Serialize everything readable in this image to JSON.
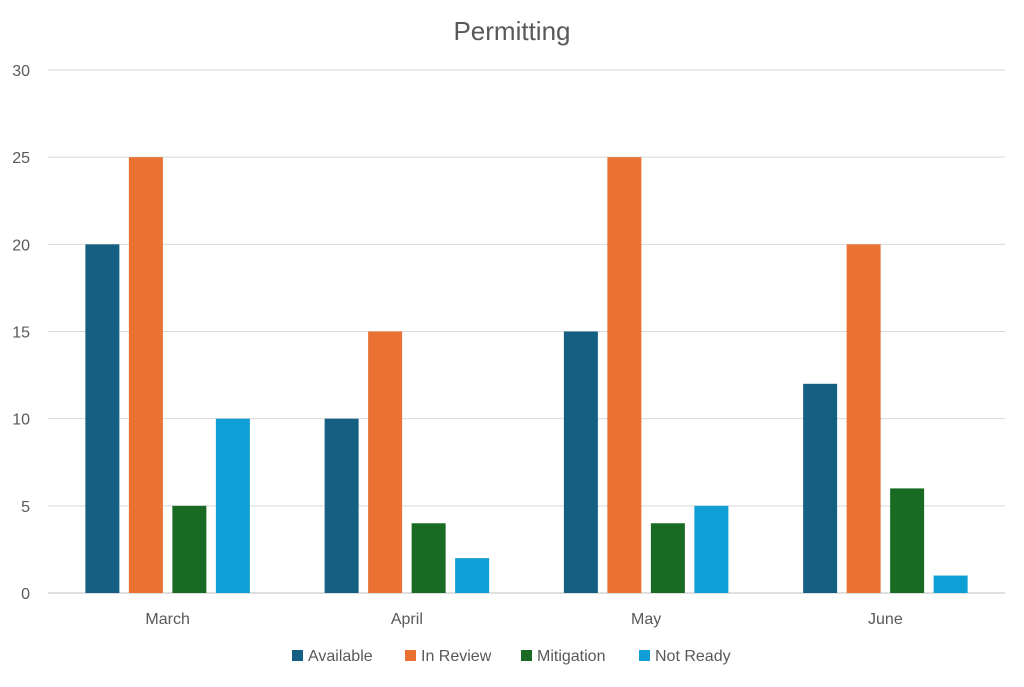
{
  "chart_data": {
    "type": "bar",
    "title": "Permitting",
    "xlabel": "",
    "ylabel": "",
    "categories": [
      "March",
      "April",
      "May",
      "June"
    ],
    "series": [
      {
        "name": "Available",
        "color": "#156082",
        "values": [
          20,
          10,
          15,
          12
        ]
      },
      {
        "name": "In Review",
        "color": "#E97132",
        "values": [
          25,
          15,
          25,
          20
        ]
      },
      {
        "name": "Mitigation",
        "color": "#196B24",
        "values": [
          5,
          4,
          4,
          6
        ]
      },
      {
        "name": "Not Ready",
        "color": "#0F9ED5",
        "values": [
          10,
          2,
          5,
          1
        ]
      }
    ],
    "ylim": [
      0,
      30
    ],
    "yticks": [
      0,
      5,
      10,
      15,
      20,
      25,
      30
    ],
    "grid": true,
    "legend": "bottom"
  }
}
